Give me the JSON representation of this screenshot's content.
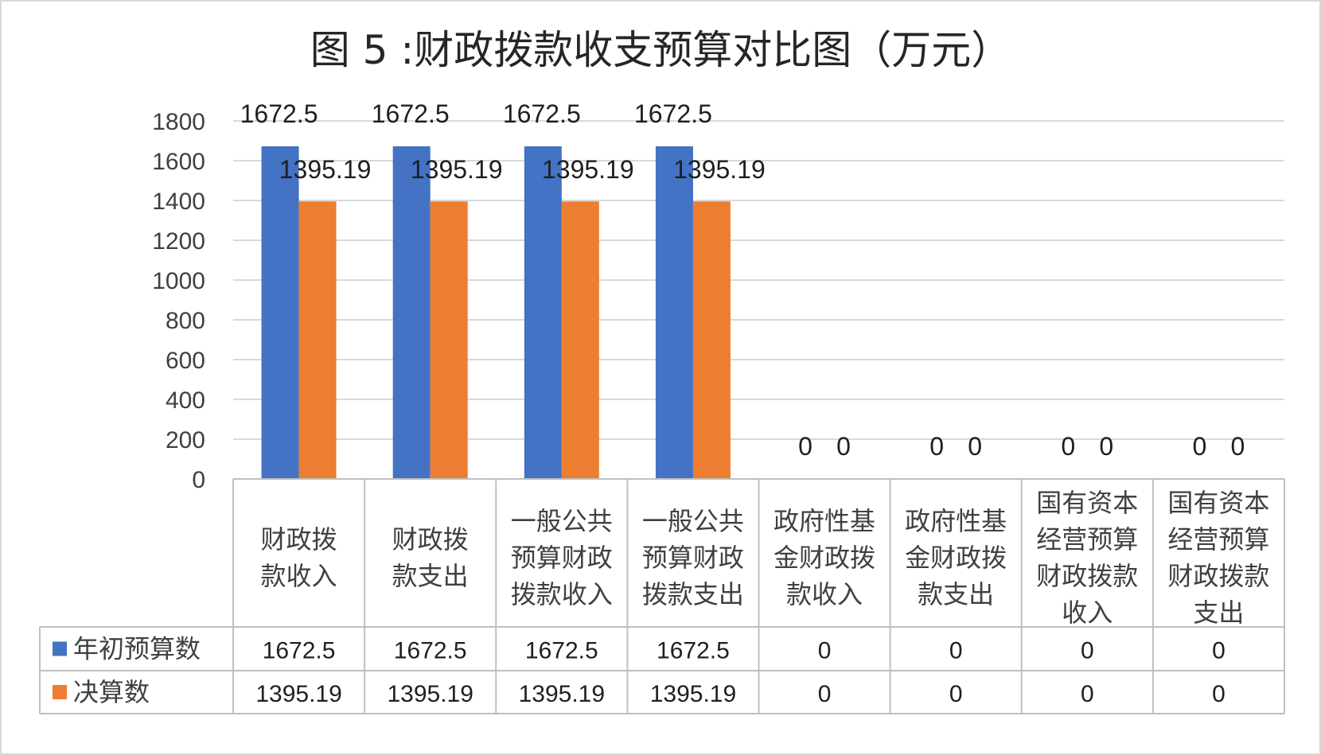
{
  "chart_data": {
    "type": "bar",
    "title": "图  5 :财政拨款收支预算对比图（万元）",
    "categories": [
      [
        "财政拨",
        "款收入"
      ],
      [
        "财政拨",
        "款支出"
      ],
      [
        "一般公共",
        "预算财政",
        "拨款收入"
      ],
      [
        "一般公共",
        "预算财政",
        "拨款支出"
      ],
      [
        "政府性基",
        "金财政拨",
        "款收入"
      ],
      [
        "政府性基",
        "金财政拨",
        "款支出"
      ],
      [
        "国有资本",
        "经营预算",
        "财政拨款",
        "收入"
      ],
      [
        "国有资本",
        "经营预算",
        "财政拨款",
        "支出"
      ]
    ],
    "series": [
      {
        "name": "年初预算数",
        "color": "#4472C4",
        "values": [
          1672.5,
          1672.5,
          1672.5,
          1672.5,
          0,
          0,
          0,
          0
        ],
        "labels": [
          "1672.5",
          "1672.5",
          "1672.5",
          "1672.5",
          "0",
          "0",
          "0",
          "0"
        ]
      },
      {
        "name": "决算数",
        "color": "#ED7D31",
        "values": [
          1395.19,
          1395.19,
          1395.19,
          1395.19,
          0,
          0,
          0,
          0
        ],
        "labels": [
          "1395.19",
          "1395.19",
          "1395.19",
          "1395.19",
          "0",
          "0",
          "0",
          "0"
        ]
      }
    ],
    "ylim": [
      0,
      1800
    ],
    "yticks": [
      0,
      200,
      400,
      600,
      800,
      1000,
      1200,
      1400,
      1600,
      1800
    ],
    "grid": true,
    "legend": "data-table"
  }
}
